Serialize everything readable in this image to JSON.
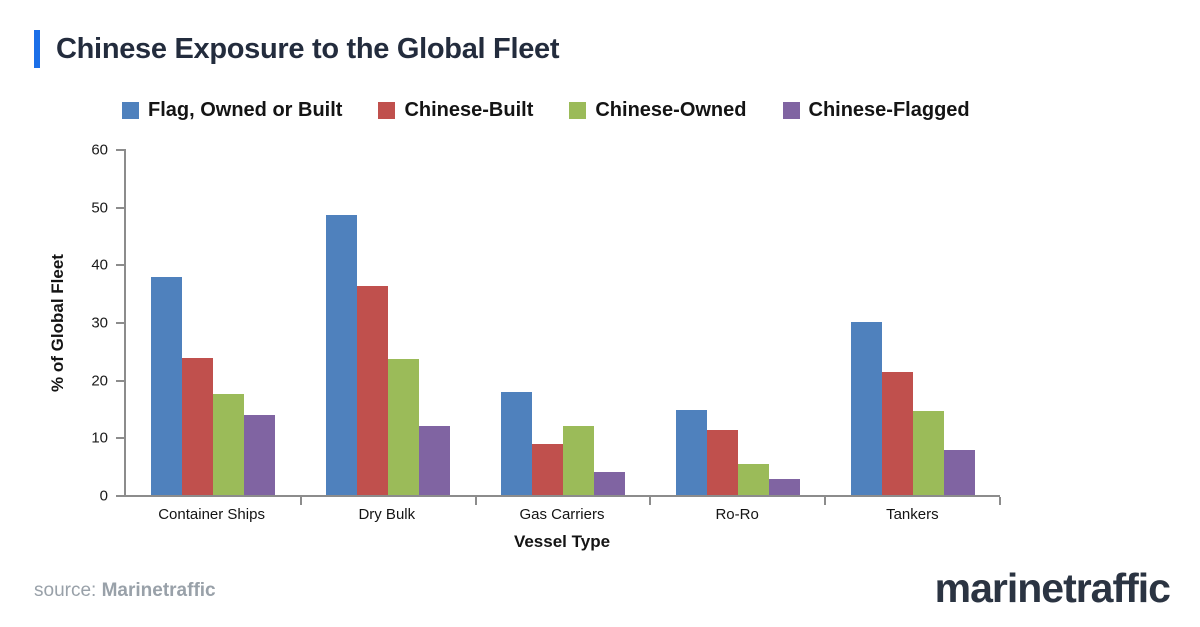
{
  "header": {
    "title": "Chinese Exposure to the Global Fleet",
    "accent_color": "#1b6fe8",
    "title_color": "#232c3d"
  },
  "chart_data": {
    "type": "bar",
    "title": "Chinese Exposure to the Global Fleet",
    "categories": [
      "Container Ships",
      "Dry Bulk",
      "Gas Carriers",
      "Ro-Ro",
      "Tankers"
    ],
    "series": [
      {
        "name": "Flag, Owned or Built",
        "color": "#4F81BD",
        "values": [
          37.8,
          48.6,
          17.8,
          14.7,
          30.0
        ]
      },
      {
        "name": "Chinese-Built",
        "color": "#C0504D",
        "values": [
          23.8,
          36.3,
          8.9,
          11.3,
          21.3
        ]
      },
      {
        "name": "Chinese-Owned",
        "color": "#9BBB59",
        "values": [
          17.5,
          23.5,
          11.9,
          5.3,
          14.5
        ]
      },
      {
        "name": "Chinese-Flagged",
        "color": "#8064A2",
        "values": [
          13.9,
          11.9,
          4.0,
          2.8,
          7.8
        ]
      }
    ],
    "xlabel": "Vessel Type",
    "ylabel": "% of Global Fleet",
    "ylim": [
      0,
      60
    ],
    "ytick_step": 10,
    "legend_position": "top",
    "grid": false,
    "axis_color": "#8c8c8c"
  },
  "footer": {
    "source_prefix": "source:",
    "source_name": "Marinetraffic",
    "logo": "marinetraffic"
  }
}
